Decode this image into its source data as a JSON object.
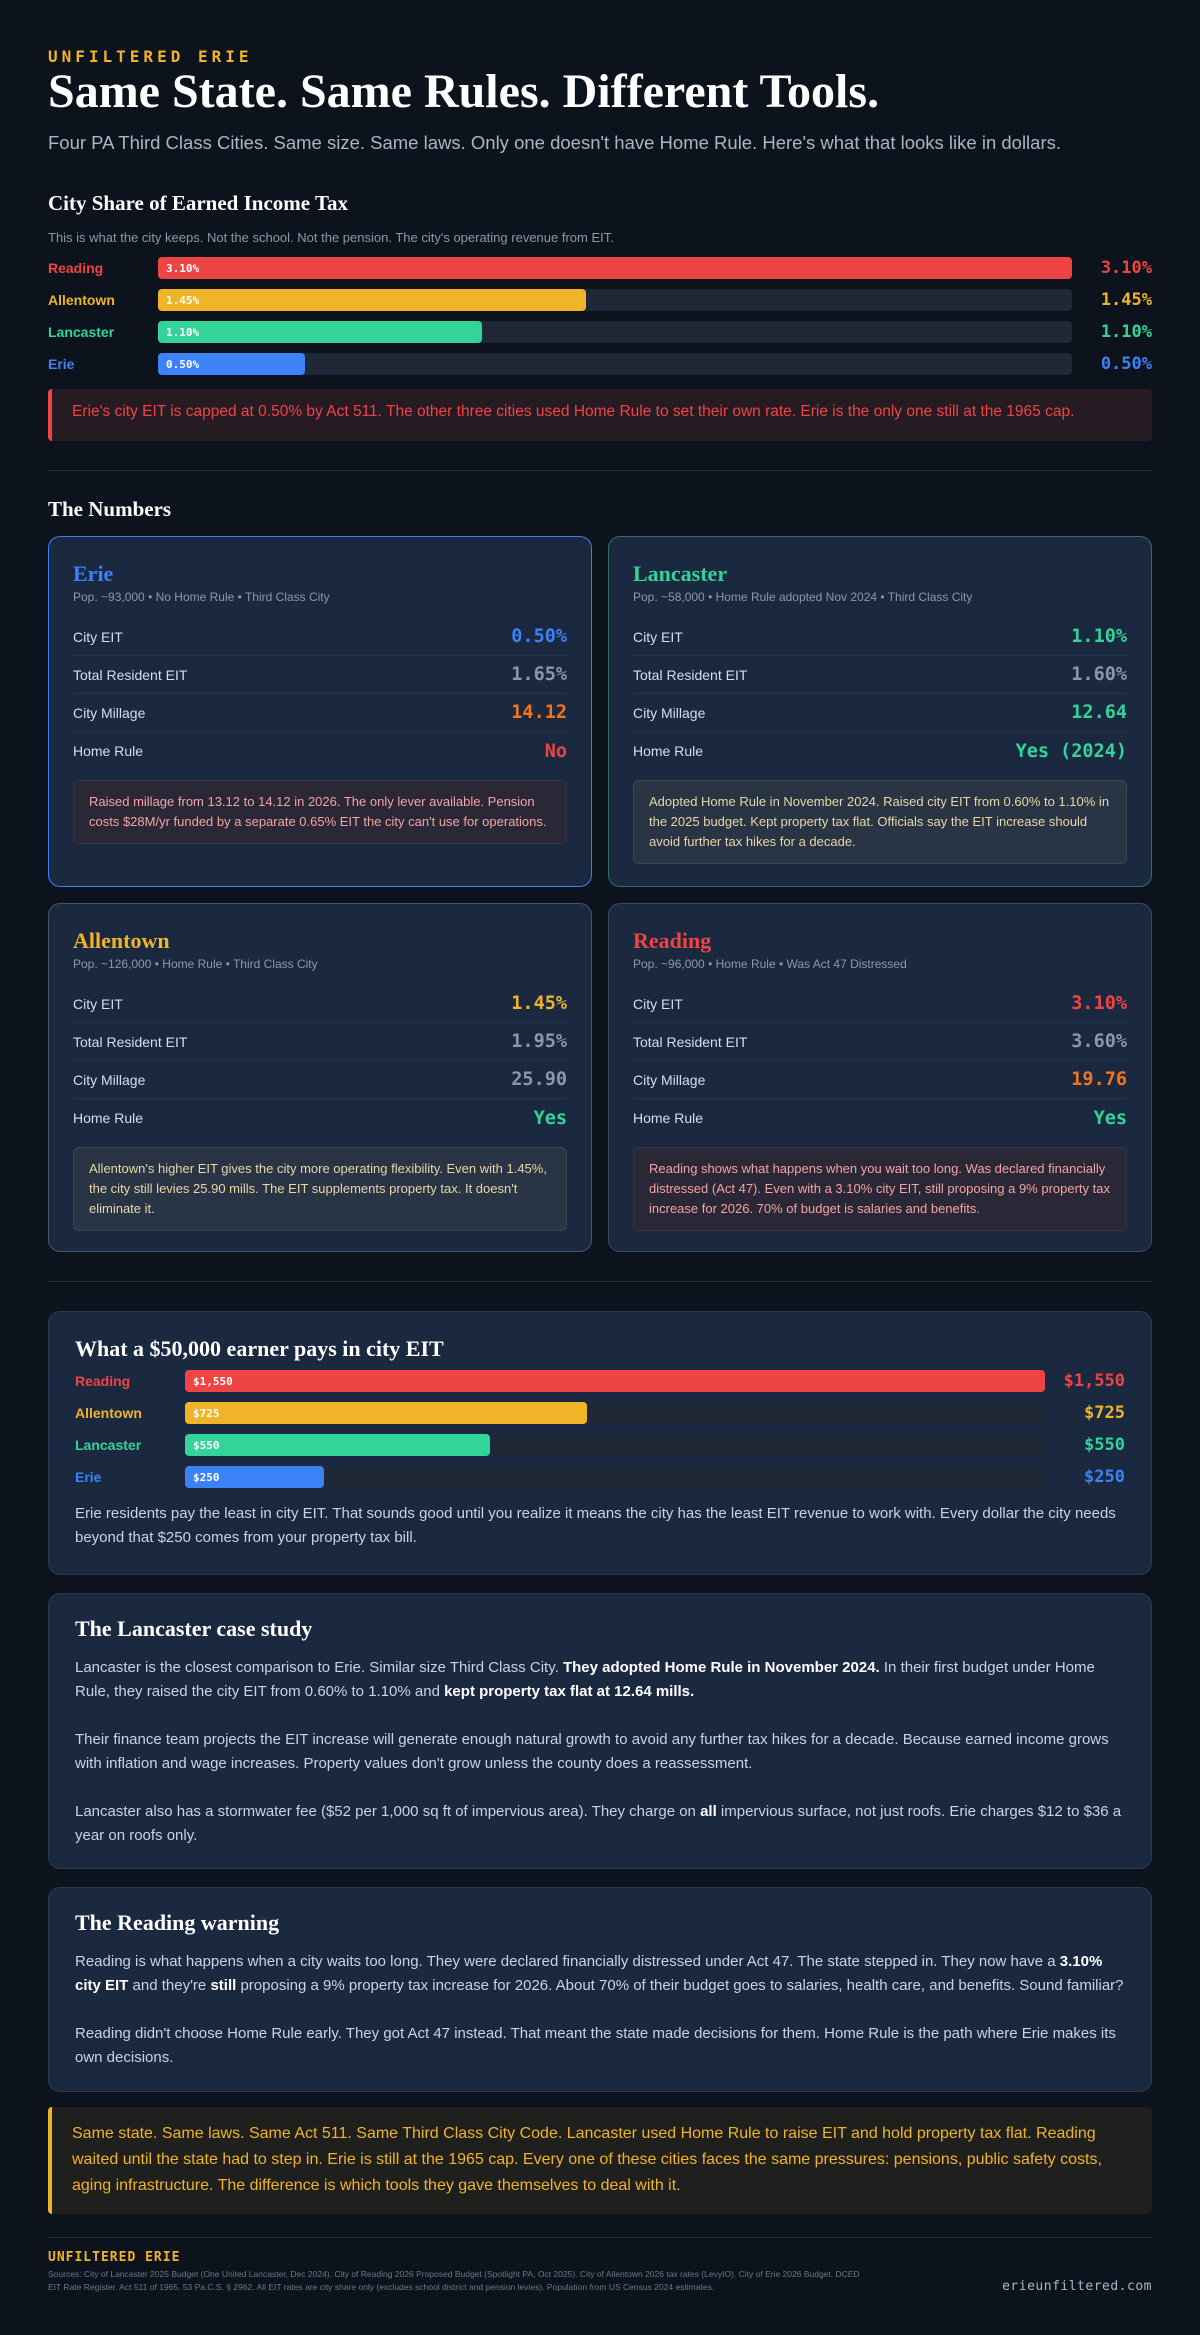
{
  "header": {
    "eyebrow": "UNFILTERED ERIE",
    "title": "Same State. Same Rules. Different Tools.",
    "subtitle": "Four PA Third Class Cities. Same size. Same laws. Only one doesn't have Home Rule. Here's what that looks like in dollars."
  },
  "eit_share": {
    "title": "City Share of Earned Income Tax",
    "note": "This is what the city keeps. Not the school. Not the pension. The city's operating revenue from EIT.",
    "callout": "Erie's city EIT is capped at 0.50% by Act 511. The other three cities used Home Rule to set their own rate. Erie is the only one still at the 1965 cap."
  },
  "chart_data": [
    {
      "type": "bar",
      "orientation": "horizontal",
      "title": "City Share of Earned Income Tax",
      "categories": [
        "Reading",
        "Allentown",
        "Lancaster",
        "Erie"
      ],
      "values": [
        3.1,
        1.45,
        1.1,
        0.5
      ],
      "value_labels": [
        "3.10%",
        "1.45%",
        "1.10%",
        "0.50%"
      ],
      "xlim": [
        0,
        3.1
      ],
      "colors": [
        "#ef4444",
        "#f0b429",
        "#34d399",
        "#3b82f6"
      ]
    },
    {
      "type": "bar",
      "orientation": "horizontal",
      "title": "What a $50,000 earner pays in city EIT",
      "categories": [
        "Reading",
        "Allentown",
        "Lancaster",
        "Erie"
      ],
      "values": [
        1550,
        725,
        550,
        250
      ],
      "value_labels": [
        "$1,550",
        "$725",
        "$550",
        "$250"
      ],
      "xlim": [
        0,
        1550
      ],
      "colors": [
        "#ef4444",
        "#f0b429",
        "#34d399",
        "#3b82f6"
      ]
    }
  ],
  "numbers": {
    "title": "The Numbers",
    "cards": [
      {
        "name": "Erie",
        "meta": "Pop. ~93,000 • No Home Rule • Third Class City",
        "color": "#3b82f6",
        "border": "#3b82f6",
        "stats": [
          {
            "label": "City EIT",
            "value": "0.50%",
            "color": "#3b82f6"
          },
          {
            "label": "Total Resident EIT",
            "value": "1.65%",
            "color": "#8b98aa"
          },
          {
            "label": "City Millage",
            "value": "14.12",
            "color": "#f97316"
          },
          {
            "label": "Home Rule",
            "value": "No",
            "color": "#ef4444"
          }
        ],
        "note": "Raised millage from 13.12 to 14.12 in 2026. The only lever available. Pension costs $28M/yr funded by a separate 0.65% EIT the city can't use for operations.",
        "note_style": "red"
      },
      {
        "name": "Lancaster",
        "meta": "Pop. ~58,000 • Home Rule adopted Nov 2024 • Third Class City",
        "color": "#34d399",
        "border": "#2f6f6a",
        "stats": [
          {
            "label": "City EIT",
            "value": "1.10%",
            "color": "#34d399"
          },
          {
            "label": "Total Resident EIT",
            "value": "1.60%",
            "color": "#8b98aa"
          },
          {
            "label": "City Millage",
            "value": "12.64",
            "color": "#34d399"
          },
          {
            "label": "Home Rule",
            "value": "Yes (2024)",
            "color": "#34d399"
          }
        ],
        "note": "Adopted Home Rule in November 2024. Raised city EIT from 0.60% to 1.10% in the 2025 budget. Kept property tax flat. Officials say the EIT increase should avoid further tax hikes for a decade.",
        "note_style": "dark"
      },
      {
        "name": "Allentown",
        "meta": "Pop. ~126,000 • Home Rule • Third Class City",
        "color": "#f0b429",
        "border": "#4a5565",
        "stats": [
          {
            "label": "City EIT",
            "value": "1.45%",
            "color": "#f0b429"
          },
          {
            "label": "Total Resident EIT",
            "value": "1.95%",
            "color": "#8b98aa"
          },
          {
            "label": "City Millage",
            "value": "25.90",
            "color": "#8b98aa"
          },
          {
            "label": "Home Rule",
            "value": "Yes",
            "color": "#34d399"
          }
        ],
        "note": "Allentown's higher EIT gives the city more operating flexibility. Even with 1.45%, the city still levies 25.90 mills. The EIT supplements property tax. It doesn't eliminate it.",
        "note_style": "dark"
      },
      {
        "name": "Reading",
        "meta": "Pop. ~96,000 • Home Rule • Was Act 47 Distressed",
        "color": "#ef4444",
        "border": "#3a4a63",
        "stats": [
          {
            "label": "City EIT",
            "value": "3.10%",
            "color": "#ef4444"
          },
          {
            "label": "Total Resident EIT",
            "value": "3.60%",
            "color": "#8b98aa"
          },
          {
            "label": "City Millage",
            "value": "19.76",
            "color": "#f97316"
          },
          {
            "label": "Home Rule",
            "value": "Yes",
            "color": "#34d399"
          }
        ],
        "note": "Reading shows what happens when you wait too long. Was declared financially distressed (Act 47). Even with a 3.10% city EIT, still proposing a 9% property tax increase for 2026. 70% of budget is salaries and benefits.",
        "note_style": "red"
      }
    ]
  },
  "earner": {
    "title": "What a $50,000 earner pays in city EIT",
    "text": "Erie residents pay the least in city EIT. That sounds good until you realize it means the city has the least EIT revenue to work with. Every dollar the city needs beyond that $250 comes from your property tax bill."
  },
  "lancaster_case": {
    "title": "The Lancaster case study",
    "p1_a": "Lancaster is the closest comparison to Erie. Similar size Third Class City. ",
    "p1_b": "They adopted Home Rule in November 2024.",
    "p1_c": " In their first budget under Home Rule, they raised the city EIT from 0.60% to 1.10% and ",
    "p1_d": "kept property tax flat at 12.64 mills.",
    "p2": "Their finance team projects the EIT increase will generate enough natural growth to avoid any further tax hikes for a decade. Because earned income grows with inflation and wage increases. Property values don't grow unless the county does a reassessment.",
    "p3_a": "Lancaster also has a stormwater fee ($52 per 1,000 sq ft of impervious area). They charge on ",
    "p3_b": "all",
    "p3_c": " impervious surface, not just roofs. Erie charges $12 to $36 a year on roofs only."
  },
  "reading_warning": {
    "title": "The Reading warning",
    "p1_a": "Reading is what happens when a city waits too long. They were declared financially distressed under Act 47. The state stepped in. They now have a ",
    "p1_b": "3.10% city EIT",
    "p1_c": " and they're ",
    "p1_d": "still",
    "p1_e": " proposing a 9% property tax increase for 2026. About 70% of their budget goes to salaries, health care, and benefits. Sound familiar?",
    "p2": "Reading didn't choose Home Rule early. They got Act 47 instead. That meant the state made decisions for them. Home Rule is the path where Erie makes its own decisions."
  },
  "closing": "Same state. Same laws. Same Act 511. Same Third Class City Code. Lancaster used Home Rule to raise EIT and hold property tax flat. Reading waited until the state had to step in. Erie is still at the 1965 cap. Every one of these cities faces the same pressures: pensions, public safety costs, aging infrastructure. The difference is which tools they gave themselves to deal with it.",
  "footer": {
    "brand": "UNFILTERED ERIE",
    "sources": "Sources: City of Lancaster 2025 Budget (One United Lancaster, Dec 2024). City of Reading 2026 Proposed Budget (Spotlight PA, Oct 2025). City of Allentown 2026 tax rates (LevyIO). City of Erie 2026 Budget. DCED EIT Rate Register. Act 511 of 1965. 53 Pa.C.S. § 2962. All EIT rates are city share only (excludes school district and pension levies). Population from US Census 2024 estimates.",
    "site": "erieunfiltered.com"
  }
}
